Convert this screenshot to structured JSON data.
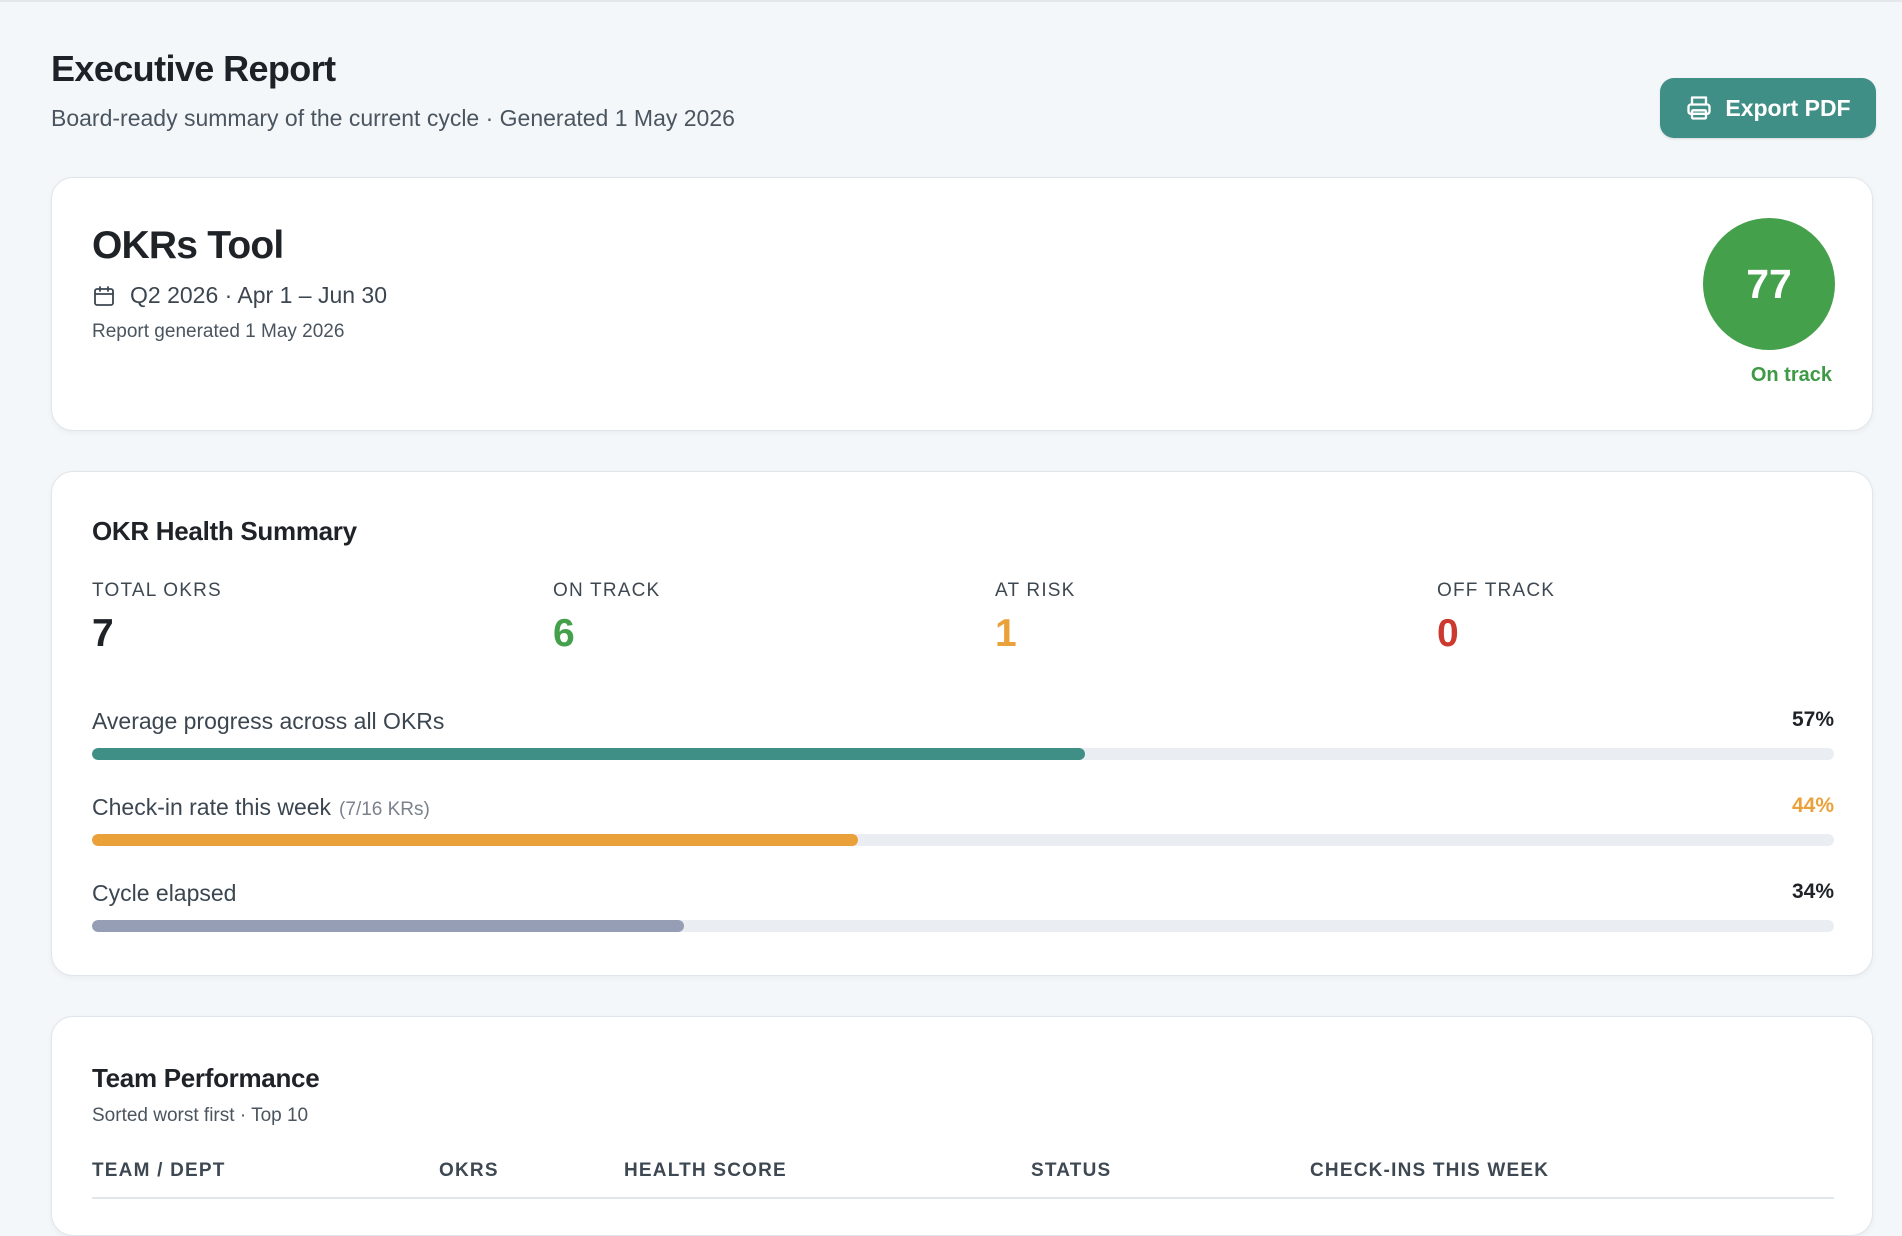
{
  "header": {
    "title": "Executive Report",
    "subtitle": "Board-ready summary of the current cycle · Generated 1 May 2026",
    "export_label": "Export PDF",
    "export_icon": "printer-icon"
  },
  "overview": {
    "product": "OKRs Tool",
    "cycle": "Q2 2026 · Apr 1 – Jun 30",
    "cycle_icon": "calendar-icon",
    "generated": "Report generated 1 May 2026",
    "score": "77",
    "score_status": "On track",
    "score_color": "#45a04c"
  },
  "health": {
    "title": "OKR Health Summary",
    "stats": [
      {
        "label": "TOTAL OKRS",
        "value": "7",
        "color": "#1f2328"
      },
      {
        "label": "ON TRACK",
        "value": "6",
        "color": "#45a04c"
      },
      {
        "label": "AT RISK",
        "value": "1",
        "color": "#eaa13a"
      },
      {
        "label": "OFF TRACK",
        "value": "0",
        "color": "#cc3a2f"
      }
    ],
    "metrics": [
      {
        "label": "Average progress across all OKRs",
        "note": "",
        "value": "57%",
        "fraction": 0.57,
        "bar_color": "#3f8f86",
        "value_color": "#1f2328"
      },
      {
        "label": "Check-in rate this week",
        "note": "(7/16 KRs)",
        "value": "44%",
        "fraction": 0.44,
        "bar_color": "#eaa13a",
        "value_color": "#eaa13a"
      },
      {
        "label": "Cycle elapsed",
        "note": "",
        "value": "34%",
        "fraction": 0.34,
        "bar_color": "#959eb5",
        "value_color": "#1f2328"
      }
    ]
  },
  "team": {
    "title": "Team Performance",
    "subtitle": "Sorted worst first · Top 10",
    "columns": [
      "TEAM / DEPT",
      "OKRS",
      "HEALTH SCORE",
      "STATUS",
      "CHECK-INS THIS WEEK"
    ]
  }
}
